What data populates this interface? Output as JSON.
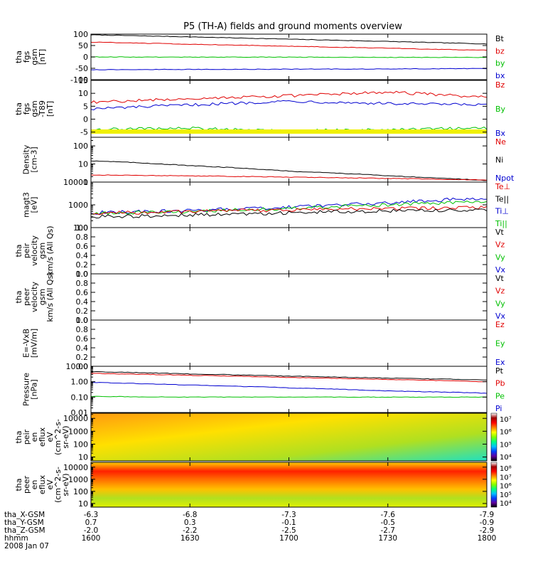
{
  "title": "P5 (TH-A) fields and ground moments overview",
  "colors": {
    "black": "#000000",
    "red": "#e00000",
    "green": "#00c000",
    "blue": "#0000d0",
    "yellow": "#f0f000"
  },
  "chart_data": [
    {
      "type": "line",
      "ylabel": [
        "tha",
        "fgs",
        "gsm",
        "[nT]"
      ],
      "ylim": [
        -100,
        100
      ],
      "yticks": [
        100,
        50,
        0,
        -50,
        -100
      ],
      "yticklabels": [
        "100",
        "50",
        "0",
        "-50",
        "-100"
      ],
      "legend": [
        "Bt",
        "bz",
        "by",
        "bx"
      ],
      "x": [
        "1600",
        "1630",
        "1700",
        "1730",
        "1800"
      ],
      "series": [
        {
          "name": "Bt",
          "color": "black",
          "values": [
            97,
            88,
            78,
            68,
            57
          ]
        },
        {
          "name": "bz",
          "color": "red",
          "values": [
            65,
            56,
            47,
            38,
            29
          ]
        },
        {
          "name": "by",
          "color": "green",
          "values": [
            0,
            -1,
            -1,
            -2,
            -2
          ]
        },
        {
          "name": "bx",
          "color": "blue",
          "values": [
            -56,
            -55,
            -54,
            -53,
            -51
          ]
        }
      ]
    },
    {
      "type": "line",
      "ylabel": [
        "tha",
        "fgs",
        "gsm",
        "-T89",
        "[nT]"
      ],
      "ylim": [
        -7,
        15
      ],
      "yticks": [
        15,
        10,
        5,
        0,
        -5
      ],
      "yticklabels": [
        "15",
        "10",
        "5",
        "0",
        "-5"
      ],
      "legend": [
        "Bz",
        "By",
        "Bx"
      ],
      "x": [
        "1600",
        "1630",
        "1700",
        "1730",
        "1800"
      ],
      "series": [
        {
          "name": "Bz",
          "color": "red",
          "values": [
            6.5,
            8,
            9,
            10.5,
            8.5
          ]
        },
        {
          "name": "By",
          "color": "blue",
          "values": [
            4,
            5.5,
            7,
            6,
            5.5
          ]
        },
        {
          "name": "Bx",
          "color": "green",
          "values": [
            -4,
            -3.5,
            -4.5,
            -4,
            -3.5
          ]
        }
      ]
    },
    {
      "type": "line",
      "ylabel": [
        "Density",
        "[cm-3]"
      ],
      "ylim": [
        1,
        300
      ],
      "yscale": "log",
      "yticks": [
        100,
        10,
        1
      ],
      "yticklabels": [
        "100",
        "10",
        "1"
      ],
      "legend": [
        "Ne",
        "Ni",
        "Npot"
      ],
      "x": [
        "1600",
        "1630",
        "1700",
        "1730",
        "1800"
      ],
      "series": [
        {
          "name": "Ni",
          "color": "black",
          "values": [
            15,
            8,
            4,
            2.2,
            1.2
          ]
        },
        {
          "name": "Ne",
          "color": "red",
          "values": [
            2.5,
            2.2,
            1.9,
            1.6,
            1.3
          ]
        }
      ]
    },
    {
      "type": "line",
      "ylabel": [
        "magt3",
        "[eV]"
      ],
      "ylim": [
        100,
        10000
      ],
      "yscale": "log",
      "yticks": [
        10000,
        1000,
        100
      ],
      "yticklabels": [
        "10000",
        "1000",
        "100"
      ],
      "legend": [
        "Te⊥",
        "Te||",
        "Ti⊥",
        "Ti||"
      ],
      "x": [
        "1600",
        "1630",
        "1700",
        "1730",
        "1800"
      ],
      "series": [
        {
          "name": "Ti⊥",
          "color": "blue",
          "values": [
            450,
            550,
            800,
            1200,
            2000
          ]
        },
        {
          "name": "Ti||",
          "color": "green",
          "values": [
            420,
            500,
            700,
            1000,
            1400
          ]
        },
        {
          "name": "Te⊥",
          "color": "red",
          "values": [
            420,
            500,
            600,
            700,
            750
          ]
        },
        {
          "name": "Te||",
          "color": "black",
          "values": [
            300,
            350,
            450,
            550,
            600
          ]
        }
      ]
    },
    {
      "type": "line",
      "ylabel": [
        "tha",
        "peir",
        "velocity",
        "gsm",
        "km/s (All Qs)"
      ],
      "ylim": [
        0,
        1
      ],
      "yticks": [
        1.0,
        0.8,
        0.6,
        0.4,
        0.2,
        0.0
      ],
      "yticklabels": [
        "1.0",
        "0.8",
        "0.6",
        "0.4",
        "0.2",
        "0.0"
      ],
      "legend": [
        "Vt",
        "Vz",
        "Vy",
        "Vx"
      ],
      "series": []
    },
    {
      "type": "line",
      "ylabel": [
        "tha",
        "peer",
        "velocity",
        "gsm",
        "km/s (All Qs)"
      ],
      "ylim": [
        0,
        1
      ],
      "yticks": [
        1.0,
        0.8,
        0.6,
        0.4,
        0.2,
        0.0
      ],
      "yticklabels": [
        "1.0",
        "0.8",
        "0.6",
        "0.4",
        "0.2",
        "0.0"
      ],
      "legend": [
        "Vt",
        "Vz",
        "Vy",
        "Vx"
      ],
      "series": []
    },
    {
      "type": "line",
      "ylabel": [
        "E=-VxB",
        "[mV/m]"
      ],
      "ylim": [
        0,
        1
      ],
      "yticks": [
        1.0,
        0.8,
        0.6,
        0.4,
        0.2,
        0.0
      ],
      "yticklabels": [
        "1.0",
        "0.8",
        "0.6",
        "0.4",
        "0.2",
        "0.0"
      ],
      "legend": [
        "Ez",
        "Ey",
        "Ex"
      ],
      "series": []
    },
    {
      "type": "line",
      "ylabel": [
        "Pressure",
        "[nPa]"
      ],
      "ylim": [
        0.01,
        10
      ],
      "yscale": "log",
      "yticks": [
        10,
        1,
        0.1,
        0.01
      ],
      "yticklabels": [
        "10.00",
        "1.00",
        "0.10",
        "0.01"
      ],
      "legend": [
        "Pt",
        "Pb",
        "Pe",
        "Pi"
      ],
      "x": [
        "1600",
        "1630",
        "1700",
        "1730",
        "1800"
      ],
      "series": [
        {
          "name": "Pt",
          "color": "black",
          "values": [
            4.5,
            3.2,
            2.3,
            1.7,
            1.3
          ]
        },
        {
          "name": "Pb",
          "color": "red",
          "values": [
            3.5,
            2.6,
            1.9,
            1.4,
            1.0
          ]
        },
        {
          "name": "Pi",
          "color": "blue",
          "values": [
            0.9,
            0.6,
            0.4,
            0.25,
            0.18
          ]
        },
        {
          "name": "Pe",
          "color": "green",
          "values": [
            0.11,
            0.1,
            0.1,
            0.1,
            0.1
          ]
        }
      ]
    },
    {
      "type": "heatmap",
      "ylabel": [
        "tha",
        "peir",
        "en",
        "eflux",
        "eV",
        "(cm^2-s-",
        "sr-eV)"
      ],
      "ylim": [
        5,
        25000
      ],
      "yscale": "log",
      "yticks": [
        10000,
        1000,
        100,
        10
      ],
      "yticklabels": [
        "10000",
        "1000",
        "100",
        "10"
      ],
      "colorbar": [
        "10⁷",
        "10⁶",
        "10⁵",
        "10⁴"
      ]
    },
    {
      "type": "heatmap",
      "ylabel": [
        "tha",
        "peer",
        "en",
        "eflux",
        "eV",
        "(cm^2-s-",
        "sr-eV)"
      ],
      "ylim": [
        5,
        25000
      ],
      "yscale": "log",
      "yticks": [
        10000,
        1000,
        100,
        10
      ],
      "yticklabels": [
        "10000",
        "1000",
        "100",
        "10"
      ],
      "colorbar": [
        "10⁸",
        "10⁷",
        "10⁶",
        "10⁵",
        "10⁴"
      ]
    }
  ],
  "xaxis": {
    "rows": [
      {
        "label": "tha_X-GSM",
        "values": [
          "-6.3",
          "-6.8",
          "-7.3",
          "-7.6",
          "-7.9"
        ]
      },
      {
        "label": "tha_Y-GSM",
        "values": [
          "0.7",
          "0.3",
          "-0.1",
          "-0.5",
          "-0.9"
        ]
      },
      {
        "label": "tha_Z-GSM",
        "values": [
          "-2.0",
          "-2.2",
          "-2.5",
          "-2.7",
          "-2.9"
        ]
      },
      {
        "label": "hhmm",
        "values": [
          "1600",
          "1630",
          "1700",
          "1730",
          "1800"
        ]
      }
    ],
    "date": "2008 Jan 07"
  }
}
